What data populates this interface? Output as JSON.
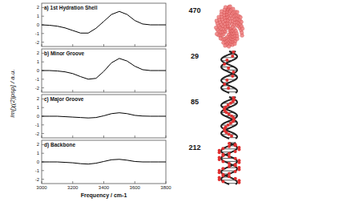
{
  "chart_data": [
    {
      "type": "line",
      "title": "a) 1st Hydration Shell",
      "annotation": 470,
      "y_label": "Im[χ(2)psp] / a.u.",
      "x": [
        3000,
        3050,
        3100,
        3150,
        3200,
        3250,
        3300,
        3350,
        3400,
        3450,
        3500,
        3550,
        3600,
        3650,
        3700,
        3750,
        3800
      ],
      "values": [
        0,
        -0.05,
        -0.15,
        -0.35,
        -0.65,
        -0.95,
        -0.95,
        -0.4,
        0.4,
        1.2,
        1.55,
        1.2,
        0.5,
        0.1,
        0,
        0,
        0
      ],
      "xlim": [
        3000,
        3800
      ],
      "xticks": [
        3000,
        3200,
        3400,
        3600,
        3800
      ],
      "ylim": [
        -2.5,
        2.5
      ],
      "yticks": [
        -2,
        -1,
        0,
        1,
        2
      ],
      "tick_labels": "y",
      "color": "#000000"
    },
    {
      "type": "line",
      "title": "b) Minor Groove",
      "annotation": 29,
      "x": [
        3000,
        3050,
        3100,
        3150,
        3200,
        3250,
        3300,
        3350,
        3400,
        3450,
        3500,
        3550,
        3600,
        3650,
        3700,
        3750,
        3800
      ],
      "values": [
        0,
        0,
        -0.05,
        -0.15,
        -0.35,
        -0.7,
        -1.0,
        -0.9,
        -0.1,
        0.9,
        1.4,
        1.1,
        0.5,
        0.1,
        0,
        0,
        0
      ],
      "xlim": [
        3000,
        3800
      ],
      "xticks": [
        3000,
        3200,
        3400,
        3600,
        3800
      ],
      "ylim": [
        -2.5,
        2.5
      ],
      "yticks": [
        -2,
        -1,
        0,
        1,
        2
      ],
      "tick_labels": "y",
      "color": "#000000"
    },
    {
      "type": "line",
      "title": "c) Major Groove",
      "annotation": 85,
      "x": [
        3000,
        3050,
        3100,
        3150,
        3200,
        3250,
        3300,
        3350,
        3400,
        3450,
        3500,
        3550,
        3600,
        3650,
        3700,
        3750,
        3800
      ],
      "values": [
        0,
        0,
        0,
        -0.05,
        -0.1,
        -0.15,
        -0.2,
        -0.15,
        0.05,
        0.3,
        0.4,
        0.3,
        0.1,
        0.02,
        0,
        0,
        0
      ],
      "xlim": [
        3000,
        3800
      ],
      "xticks": [
        3000,
        3200,
        3400,
        3600,
        3800
      ],
      "ylim": [
        -2.5,
        2.5
      ],
      "yticks": [
        -2,
        -1,
        0,
        1,
        2
      ],
      "tick_labels": "y",
      "color": "#000000"
    },
    {
      "type": "line",
      "title": "d) Backbone",
      "annotation": 212,
      "x_label": "Frequency / cm-1",
      "x": [
        3000,
        3050,
        3100,
        3150,
        3200,
        3250,
        3300,
        3350,
        3400,
        3450,
        3500,
        3550,
        3600,
        3650,
        3700,
        3750,
        3800
      ],
      "values": [
        0,
        0,
        0,
        -0.05,
        -0.1,
        -0.2,
        -0.25,
        -0.15,
        0.05,
        0.25,
        0.3,
        0.2,
        0.05,
        0,
        0,
        0,
        0
      ],
      "xlim": [
        3000,
        3800
      ],
      "xticks": [
        3000,
        3200,
        3400,
        3600,
        3800
      ],
      "ylim": [
        -2.5,
        2.5
      ],
      "yticks": [
        -2,
        -1,
        0,
        1,
        2
      ],
      "color": "#000000"
    }
  ]
}
